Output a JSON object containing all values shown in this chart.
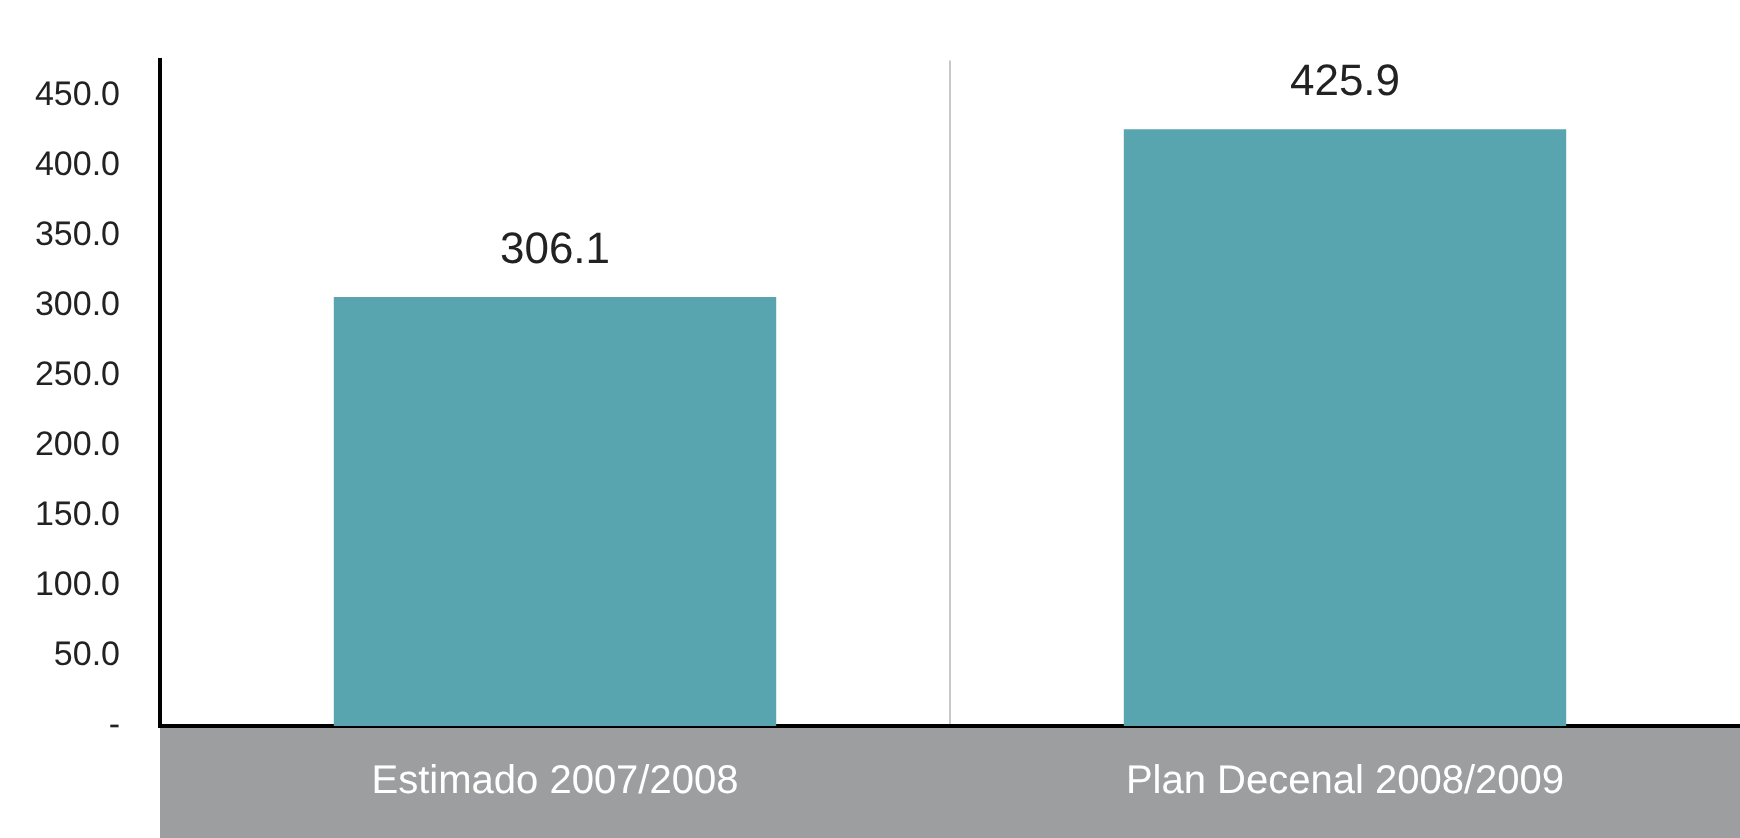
{
  "chart_data": {
    "type": "bar",
    "categories": [
      "Estimado 2007/2008",
      "Plan Decenal 2008/2009"
    ],
    "values": [
      306.1,
      425.9
    ],
    "color": "#58a5b0",
    "ylim": [
      0,
      475
    ],
    "yticks": [
      {
        "value": 0,
        "label": "-"
      },
      {
        "value": 50,
        "label": "50.0"
      },
      {
        "value": 100,
        "label": "100.0"
      },
      {
        "value": 150,
        "label": "150.0"
      },
      {
        "value": 200,
        "label": "200.0"
      },
      {
        "value": 250,
        "label": "250.0"
      },
      {
        "value": 300,
        "label": "300.0"
      },
      {
        "value": 350,
        "label": "350.0"
      },
      {
        "value": 400,
        "label": "400.0"
      },
      {
        "value": 450,
        "label": "450.0"
      }
    ],
    "grid": "x",
    "data_labels": true
  }
}
